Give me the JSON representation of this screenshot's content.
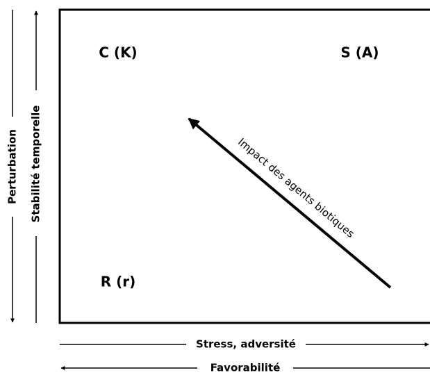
{
  "quadrants": {
    "top_left": "C (K)",
    "top_right": "S (A)",
    "bottom_left": "R (r)"
  },
  "arrow_label": "Impact des agents biotiques",
  "x_axes": {
    "right": "Stress, adversité",
    "left": "Favorabilité"
  },
  "y_axes": {
    "down": "Perturbation",
    "up": "Stabilité temporelle"
  }
}
